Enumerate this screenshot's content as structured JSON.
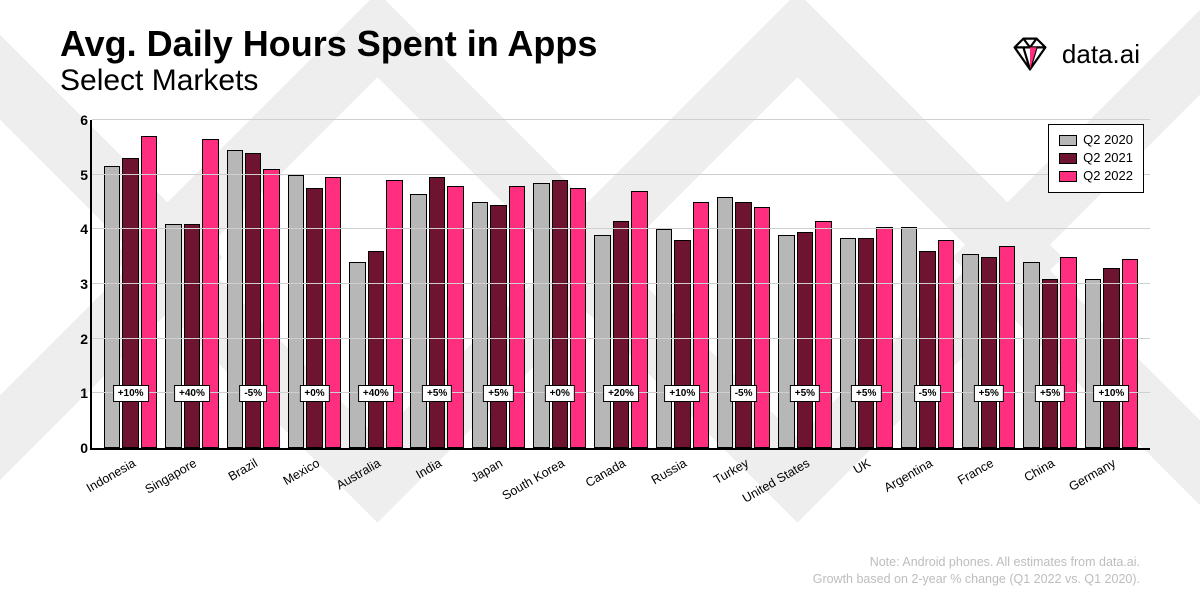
{
  "title": "Avg. Daily Hours Spent in Apps",
  "subtitle": "Select Markets",
  "brand_text": "data.ai",
  "chart": {
    "type": "bar",
    "ylim": [
      0,
      6
    ],
    "ytick_step": 1,
    "grid_color": "#cfcfcf",
    "axis_color": "#000000",
    "background_color": "#ffffff",
    "series": [
      {
        "label": "Q2 2020",
        "color": "#b7b7b7"
      },
      {
        "label": "Q2 2021",
        "color": "#6e1431"
      },
      {
        "label": "Q2 2022",
        "color": "#ff2e7e"
      }
    ],
    "growth_label_bottom_value": 0.85,
    "categories": [
      {
        "name": "Indonesia",
        "values": [
          5.15,
          5.3,
          5.7
        ],
        "growth": "+10%"
      },
      {
        "name": "Singapore",
        "values": [
          4.1,
          4.1,
          5.65
        ],
        "growth": "+40%"
      },
      {
        "name": "Brazil",
        "values": [
          5.45,
          5.4,
          5.1
        ],
        "growth": "-5%"
      },
      {
        "name": "Mexico",
        "values": [
          5.0,
          4.75,
          4.95
        ],
        "growth": "+0%"
      },
      {
        "name": "Australia",
        "values": [
          3.4,
          3.6,
          4.9
        ],
        "growth": "+40%"
      },
      {
        "name": "India",
        "values": [
          4.65,
          4.95,
          4.8
        ],
        "growth": "+5%"
      },
      {
        "name": "Japan",
        "values": [
          4.5,
          4.45,
          4.8
        ],
        "growth": "+5%"
      },
      {
        "name": "South Korea",
        "values": [
          4.85,
          4.9,
          4.75
        ],
        "growth": "+0%"
      },
      {
        "name": "Canada",
        "values": [
          3.9,
          4.15,
          4.7
        ],
        "growth": "+20%"
      },
      {
        "name": "Russia",
        "values": [
          4.0,
          3.8,
          4.5
        ],
        "growth": "+10%"
      },
      {
        "name": "Turkey",
        "values": [
          4.6,
          4.5,
          4.4
        ],
        "growth": "-5%"
      },
      {
        "name": "United States",
        "values": [
          3.9,
          3.95,
          4.15
        ],
        "growth": "+5%"
      },
      {
        "name": "UK",
        "values": [
          3.85,
          3.85,
          4.05
        ],
        "growth": "+5%"
      },
      {
        "name": "Argentina",
        "values": [
          4.05,
          3.6,
          3.8
        ],
        "growth": "-5%"
      },
      {
        "name": "France",
        "values": [
          3.55,
          3.5,
          3.7
        ],
        "growth": "+5%"
      },
      {
        "name": "China",
        "values": [
          3.4,
          3.1,
          3.5
        ],
        "growth": "+5%"
      },
      {
        "name": "Germany",
        "values": [
          3.1,
          3.3,
          3.45
        ],
        "growth": "+10%"
      }
    ]
  },
  "footer_line1": "Note: Android phones. All estimates from data.ai.",
  "footer_line2": "Growth based on 2-year % change (Q1 2022 vs. Q1 2020).",
  "bg_pattern_color": "#eeeeee",
  "logo": {
    "stroke": "#000000",
    "fill": "#ff2e7e"
  }
}
